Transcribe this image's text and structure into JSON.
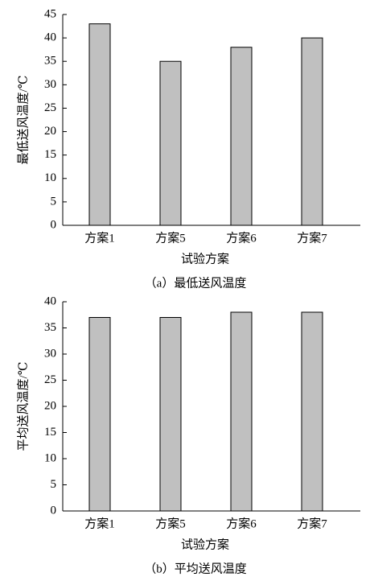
{
  "chart_data": [
    {
      "type": "bar",
      "categories": [
        "方案1",
        "方案5",
        "方案6",
        "方案7"
      ],
      "values": [
        43,
        35,
        38,
        40
      ],
      "color": "#c0c0c0",
      "ylim": [
        0,
        45
      ],
      "yticks": [
        0,
        5,
        10,
        15,
        20,
        25,
        30,
        35,
        40,
        45
      ],
      "y_label": "最低送风温度/℃",
      "x_label": "试验方案",
      "caption": "（a）最低送风温度"
    },
    {
      "type": "bar",
      "categories": [
        "方案1",
        "方案5",
        "方案6",
        "方案7"
      ],
      "values": [
        37,
        37,
        38,
        38
      ],
      "color": "#c0c0c0",
      "ylim": [
        0,
        40
      ],
      "yticks": [
        0,
        5,
        10,
        15,
        20,
        25,
        30,
        35,
        40
      ],
      "y_label": "平均送风温度/℃",
      "x_label": "试验方案",
      "caption": "（b）平均送风温度"
    }
  ]
}
